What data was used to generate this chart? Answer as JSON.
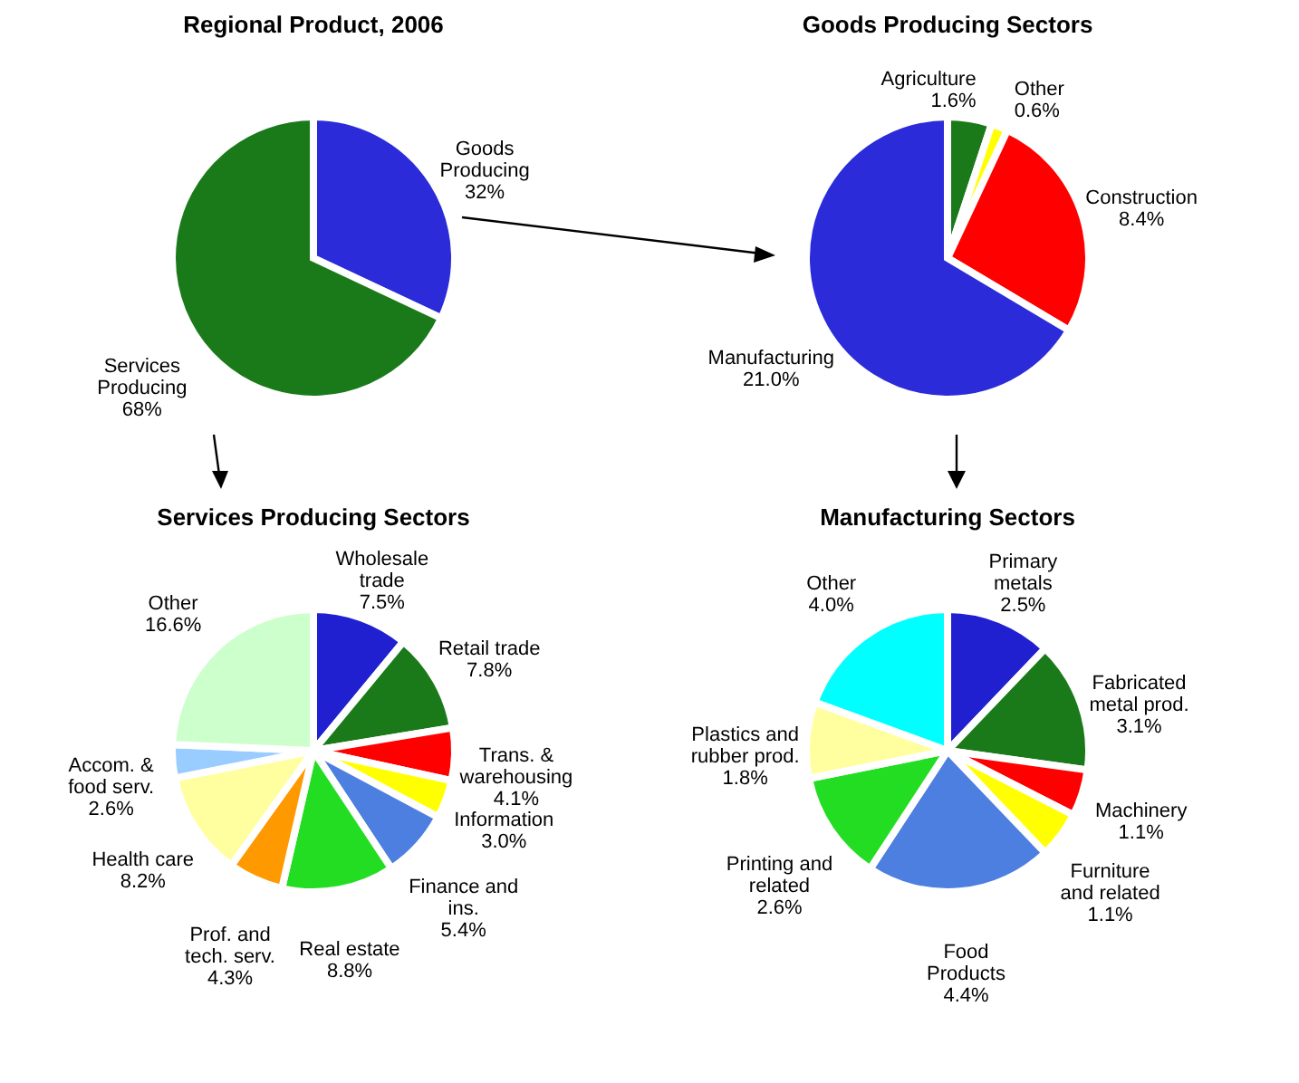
{
  "chart_data": [
    {
      "type": "pie",
      "title": "Regional Product, 2006",
      "categories": [
        "Goods Producing",
        "Services Producing"
      ],
      "values": [
        32,
        68
      ],
      "colors": [
        "#2b2bd9",
        "#1a7a1a"
      ],
      "value_labels": [
        "32%",
        "68%"
      ]
    },
    {
      "type": "pie",
      "title": "Goods Producing Sectors",
      "categories": [
        "Agriculture",
        "Other",
        "Construction",
        "Manufacturing"
      ],
      "values": [
        1.6,
        0.6,
        8.4,
        21.0
      ],
      "colors": [
        "#1a7a1a",
        "#ffff00",
        "#ff0000",
        "#2b2bd9"
      ],
      "value_labels": [
        "1.6%",
        "0.6%",
        "8.4%",
        "21.0%"
      ]
    },
    {
      "type": "pie",
      "title": "Services Producing Sectors",
      "categories": [
        "Wholesale trade",
        "Retail trade",
        "Trans. & warehousing",
        "Information",
        "Finance and ins.",
        "Real estate",
        "Prof. and tech. serv.",
        "Health care",
        "Accom. & food serv.",
        "Other"
      ],
      "values": [
        7.5,
        7.8,
        4.1,
        3.0,
        5.4,
        8.8,
        4.3,
        8.2,
        2.6,
        16.6
      ],
      "colors": [
        "#2020d0",
        "#1a7a1a",
        "#ff0000",
        "#ffff00",
        "#4d7fe0",
        "#22dd22",
        "#ff9900",
        "#ffffa0",
        "#99ccff",
        "#ccffcc"
      ],
      "value_labels": [
        "7.5%",
        "7.8%",
        "4.1%",
        "3.0%",
        "5.4%",
        "8.8%",
        "4.3%",
        "8.2%",
        "2.6%",
        "16.6%"
      ]
    },
    {
      "type": "pie",
      "title": "Manufacturing Sectors",
      "categories": [
        "Primary metals",
        "Fabricated metal prod.",
        "Machinery",
        "Furniture and related",
        "Food Products",
        "Printing and related",
        "Plastics and rubber prod.",
        "Other"
      ],
      "values": [
        2.5,
        3.1,
        1.1,
        1.1,
        4.4,
        2.6,
        1.8,
        4.0
      ],
      "colors": [
        "#2020d0",
        "#1a7a1a",
        "#ff0000",
        "#ffff00",
        "#4d7fe0",
        "#22dd22",
        "#ffffa0",
        "#00ffff"
      ],
      "value_labels": [
        "2.5%",
        "3.1%",
        "1.1%",
        "1.1%",
        "4.4%",
        "2.6%",
        "1.8%",
        "4.0%"
      ]
    }
  ]
}
